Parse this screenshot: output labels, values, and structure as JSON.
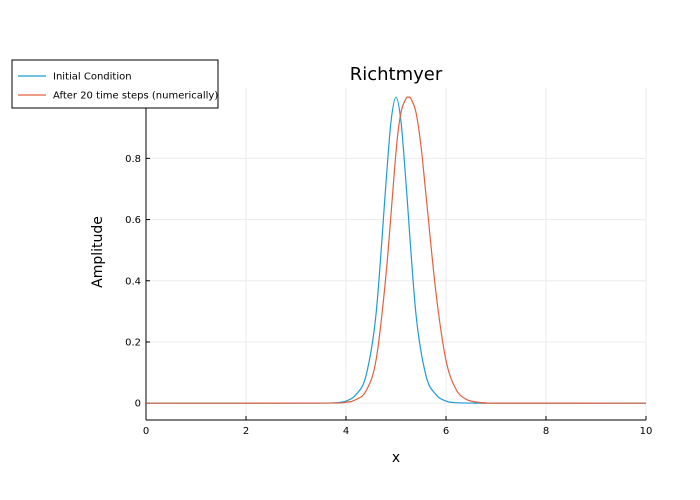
{
  "chart_data": {
    "type": "line",
    "title": "Richtmyer",
    "xlabel": "x",
    "ylabel": "Amplitude",
    "xlim": [
      0,
      10
    ],
    "ylim": [
      -0.055,
      1.03
    ],
    "xticks": [
      0,
      2,
      4,
      6,
      8,
      10
    ],
    "xtick_labels": [
      "0",
      "2",
      "4",
      "6",
      "8",
      "10"
    ],
    "yticks": [
      0,
      0.2,
      0.4,
      0.6,
      0.8
    ],
    "ytick_labels": [
      "0",
      "0.2",
      "0.4",
      "0.6",
      "0.8"
    ],
    "grid": true,
    "legend_position": "top-left",
    "series": [
      {
        "name": "Initial Condition",
        "color": "#1f9bd6",
        "x": [
          0,
          3.0,
          3.5,
          3.8,
          4.0,
          4.2,
          4.4,
          4.6,
          4.8,
          4.9,
          5.0,
          5.1,
          5.2,
          5.4,
          5.6,
          5.8,
          6.0,
          6.2,
          6.5,
          7.0,
          10
        ],
        "y": [
          0,
          0.0,
          0.0003,
          0.0015,
          0.007,
          0.028,
          0.09,
          0.29,
          0.72,
          0.92,
          1.0,
          0.92,
          0.72,
          0.29,
          0.09,
          0.028,
          0.007,
          0.0015,
          0.0003,
          0.0,
          0
        ]
      },
      {
        "name": "After 20 time steps (numerically)",
        "color": "#e2613f",
        "x": [
          0,
          3.5,
          4.0,
          4.2,
          4.4,
          4.6,
          4.8,
          5.0,
          5.1,
          5.2,
          5.25,
          5.3,
          5.4,
          5.5,
          5.6,
          5.8,
          6.0,
          6.2,
          6.4,
          6.6,
          6.8,
          7.0,
          10
        ],
        "y": [
          0,
          0.0003,
          0.003,
          0.012,
          0.04,
          0.14,
          0.42,
          0.82,
          0.95,
          0.995,
          1.0,
          0.995,
          0.95,
          0.84,
          0.68,
          0.36,
          0.14,
          0.045,
          0.013,
          0.004,
          0.001,
          0.0002,
          0
        ]
      }
    ]
  }
}
